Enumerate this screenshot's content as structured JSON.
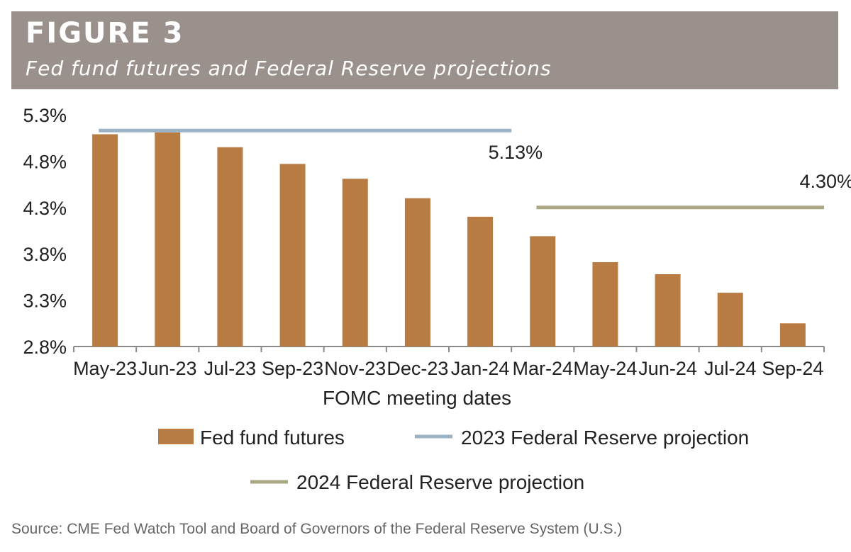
{
  "figure": {
    "label": "FIGURE 3",
    "title": "Fed fund futures and Federal Reserve projections",
    "source": "Source: CME Fed Watch Tool and Board of Governors of the Federal Reserve System (U.S.)"
  },
  "chart_data": {
    "type": "bar",
    "xlabel": "FOMC meeting dates",
    "ylim": [
      2.8,
      5.3
    ],
    "yticks": [
      "5.3%",
      "4.8%",
      "4.3%",
      "3.8%",
      "3.3%",
      "2.8%"
    ],
    "categories": [
      "May-23",
      "Jun-23",
      "Jul-23",
      "Sep-23",
      "Nov-23",
      "Dec-23",
      "Jan-24",
      "Mar-24",
      "May-24",
      "Jun-24",
      "Jul-24",
      "Sep-24"
    ],
    "series": [
      {
        "name": "Fed fund futures",
        "color": "#b87b42",
        "values": [
          5.09,
          5.11,
          4.95,
          4.77,
          4.61,
          4.4,
          4.2,
          3.99,
          3.71,
          3.58,
          3.38,
          3.05
        ]
      }
    ],
    "projections": [
      {
        "name": "2023 Federal Reserve projection",
        "color": "#9ab2c6",
        "value": 5.13,
        "label": "5.13%",
        "start": "May-23",
        "end": "Jan-24"
      },
      {
        "name": "2024 Federal Reserve projection",
        "color": "#aca784",
        "value": 4.3,
        "label": "4.30%",
        "start": "Mar-24",
        "end": "Sep-24"
      }
    ],
    "legend_position": "bottom"
  }
}
